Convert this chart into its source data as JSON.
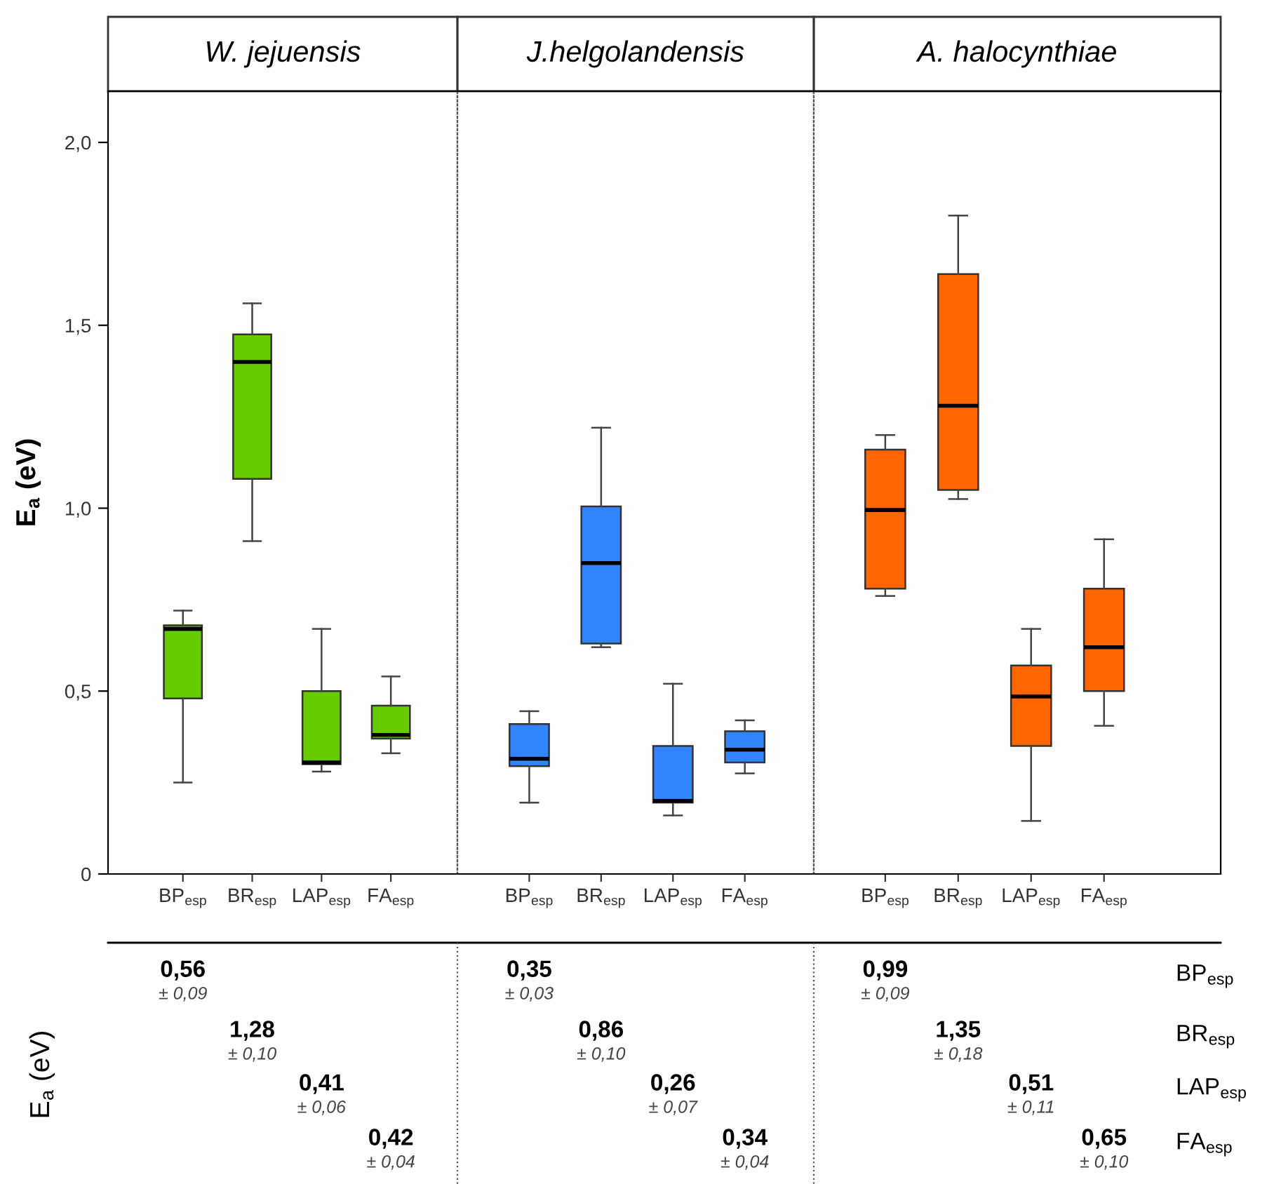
{
  "chart_data": [
    {
      "type": "box",
      "title": "W. jejuensis",
      "ylabel": "E$_{a}$ (eV)",
      "categories": [
        "BP$_{esp}$",
        "BR$_{esp}$",
        "LAP$_{esp}$",
        "FA$_{esp}$"
      ],
      "color": "#66cc00",
      "ylim": [
        0,
        2.14
      ],
      "yticks": [
        0,
        {
          "value": 0.5,
          "label": "0,5"
        },
        {
          "value": 1.0,
          "label": "1,0"
        },
        {
          "value": 1.5,
          "label": "1,5"
        },
        {
          "value": 2.0,
          "label": "2,0"
        }
      ],
      "grid": false,
      "boxes": [
        {
          "low": 0.25,
          "q1": 0.48,
          "median": 0.67,
          "q3": 0.68,
          "high": 0.72
        },
        {
          "low": 0.91,
          "q1": 1.08,
          "median": 1.4,
          "q3": 1.475,
          "high": 1.56
        },
        {
          "low": 0.28,
          "q1": 0.3,
          "median": 0.305,
          "q3": 0.5,
          "high": 0.67
        },
        {
          "low": 0.33,
          "q1": 0.37,
          "median": 0.38,
          "q3": 0.46,
          "high": 0.54
        }
      ],
      "annotations": [
        "0,56",
        "± 0,09",
        "1,28",
        "± 0,10",
        "0,41",
        "± 0,06",
        "0,42",
        "± 0,04"
      ]
    },
    {
      "type": "box",
      "title": "J.helgolandensis",
      "categories": [
        "BP$_{esp}$",
        "BR$_{esp}$",
        "LAP$_{esp}$",
        "FA$_{esp}$"
      ],
      "color": "#3385ff",
      "ylim": [
        0,
        2.14
      ],
      "grid": false,
      "tick_labels": "x",
      "boxes": [
        {
          "low": 0.195,
          "q1": 0.295,
          "median": 0.315,
          "q3": 0.41,
          "high": 0.445
        },
        {
          "low": 0.62,
          "q1": 0.63,
          "median": 0.85,
          "q3": 1.005,
          "high": 1.22
        },
        {
          "low": 0.16,
          "q1": 0.195,
          "median": 0.2,
          "q3": 0.35,
          "high": 0.52
        },
        {
          "low": 0.275,
          "q1": 0.305,
          "median": 0.34,
          "q3": 0.39,
          "high": 0.42
        }
      ],
      "annotations": [
        "0,35",
        "± 0,03",
        "0,86",
        "± 0,10",
        "0,26",
        "± 0,07",
        "0,34",
        "± 0,04"
      ]
    },
    {
      "type": "box",
      "title": "A. halocynthiae",
      "categories": [
        "BP$_{esp}$",
        "BR$_{esp}$",
        "LAP$_{esp}$",
        "FA$_{esp}$"
      ],
      "color": "#ff6600",
      "ylim": [
        0,
        2.14
      ],
      "grid": false,
      "tick_labels": "x",
      "boxes": [
        {
          "low": 0.76,
          "q1": 0.78,
          "median": 0.995,
          "q3": 1.16,
          "high": 1.2
        },
        {
          "low": 1.025,
          "q1": 1.05,
          "median": 1.28,
          "q3": 1.64,
          "high": 1.8
        },
        {
          "low": 0.145,
          "q1": 0.35,
          "median": 0.485,
          "q3": 0.57,
          "high": 0.67
        },
        {
          "low": 0.405,
          "q1": 0.5,
          "median": 0.62,
          "q3": 0.78,
          "high": 0.915
        }
      ],
      "annotations": [
        "0,99",
        "± 0,09",
        "1,35",
        "± 0,18",
        "0,51",
        "± 0,11",
        "0,65",
        "± 0,10"
      ]
    },
    {
      "type": "other",
      "ylabel": "E$_{a}$ (eV)",
      "annotations": [
        "BP$_{esp}$",
        "BR$_{esp}$",
        "LAP$_{esp}$",
        "FA$_{esp}$"
      ]
    }
  ]
}
